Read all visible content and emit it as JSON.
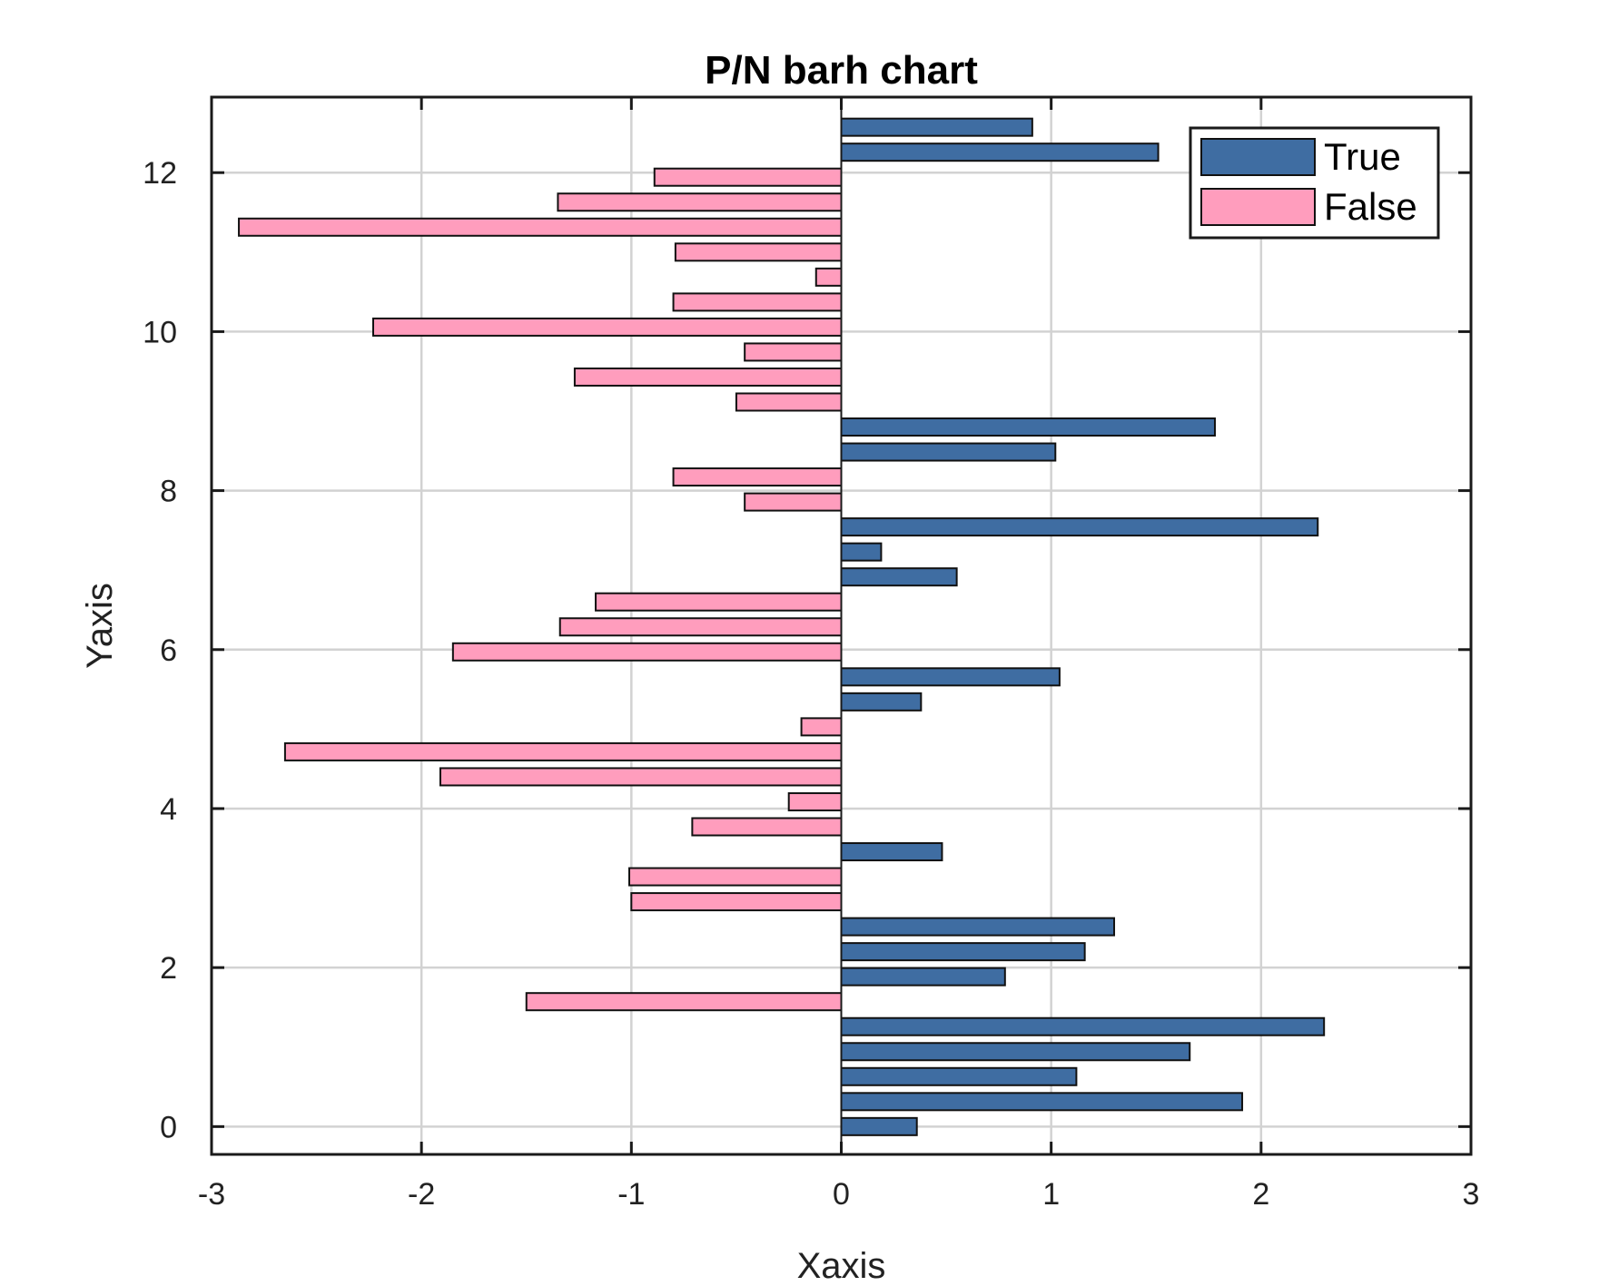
{
  "chart_data": {
    "type": "bar",
    "orientation": "horizontal",
    "title": "P/N barh chart",
    "xlabel": "Xaxis",
    "ylabel": "Yaxis",
    "xlim": [
      -3,
      3
    ],
    "ylim": [
      -0.35,
      12.95
    ],
    "xticks": [
      -3,
      -2,
      -1,
      0,
      1,
      2,
      3
    ],
    "yticks": [
      0,
      2,
      4,
      6,
      8,
      10,
      12
    ],
    "grid": true,
    "legend_position": "top-right",
    "y": [
      0,
      0.3143,
      0.6286,
      0.9429,
      1.2571,
      1.5714,
      1.8857,
      2.2,
      2.5143,
      2.8286,
      3.1429,
      3.4571,
      3.7714,
      4.0857,
      4.4,
      4.7143,
      5.0286,
      5.3429,
      5.6571,
      5.9714,
      6.2857,
      6.6,
      6.9143,
      7.2286,
      7.5429,
      7.8571,
      8.1714,
      8.4857,
      8.8,
      9.1143,
      9.4286,
      9.7429,
      10.0571,
      10.3714,
      10.6857,
      11.0,
      11.3143,
      11.6286,
      11.9429,
      12.2571,
      12.5714
    ],
    "values": [
      0.36,
      1.91,
      1.12,
      1.66,
      2.3,
      -1.5,
      0.78,
      1.16,
      1.3,
      -1.0,
      -1.01,
      0.48,
      -0.71,
      -0.25,
      -1.91,
      -2.65,
      -0.19,
      0.38,
      1.04,
      -1.85,
      -1.34,
      -1.17,
      0.55,
      0.19,
      2.27,
      -0.46,
      -0.8,
      1.02,
      1.78,
      -0.5,
      -1.27,
      -0.46,
      -2.23,
      -0.8,
      -0.12,
      -0.79,
      -2.87,
      -1.35,
      -0.89,
      1.51,
      0.91
    ],
    "series": [
      {
        "name": "True",
        "color": "#3f6da2"
      },
      {
        "name": "False",
        "color": "#ff9dbd"
      }
    ]
  }
}
